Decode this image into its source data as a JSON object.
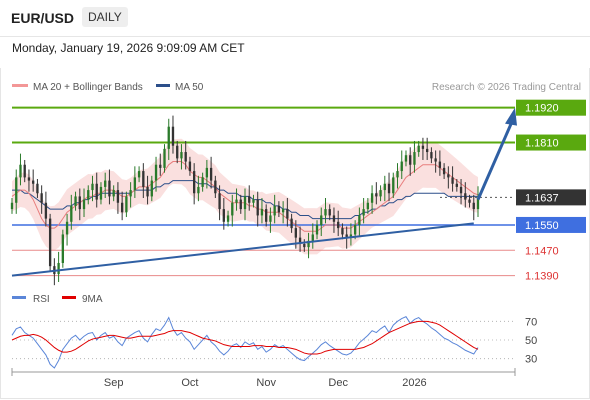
{
  "header": {
    "symbol": "EUR/USD",
    "timeframe": "DAILY"
  },
  "timestamp": "Monday, January 19, 2026 9:09:09 AM CET",
  "credit": "Research © 2026 Trading Central",
  "colors": {
    "green": "#5aa90f",
    "blue": "#3f6fe0",
    "red": "#e05555",
    "dark": "#333333",
    "arrow": "#2f5fa3",
    "band": "#f8d6d4",
    "ma20": "#e87d7d",
    "ma50": "#2c4f8a",
    "candle_up": "#2a7a2a",
    "candle_dn": "#333333"
  },
  "chart_data": [
    {
      "type": "line",
      "title": "EUR/USD",
      "legend": [
        {
          "name": "MA 20 + Bollinger Bands",
          "color": "#f39797"
        },
        {
          "name": "MA 50",
          "color": "#2c4f8a"
        }
      ],
      "x_ticks": [
        "Sep",
        "Oct",
        "Nov",
        "Dec",
        "2026"
      ],
      "ylim": [
        1.137,
        1.196
      ],
      "levels": [
        {
          "label": "1.1920",
          "value": 1.192,
          "style": "green-solid"
        },
        {
          "label": "1.1810",
          "value": 1.181,
          "style": "green-solid"
        },
        {
          "label": "1.1637",
          "value": 1.1637,
          "style": "dark-dotted"
        },
        {
          "label": "1.1550",
          "value": 1.155,
          "style": "blue-solid"
        },
        {
          "label": "1.1470",
          "value": 1.147,
          "style": "red-thin"
        },
        {
          "label": "1.1390",
          "value": 1.139,
          "style": "red-thin"
        }
      ],
      "trendline": {
        "from": [
          0,
          1.139
        ],
        "to": [
          109,
          1.1555
        ]
      },
      "forecast_arrow": {
        "from": [
          110,
          1.163
        ],
        "to": [
          118,
          1.192
        ]
      },
      "close": [
        1.162,
        1.17,
        1.174,
        1.17,
        1.169,
        1.168,
        1.165,
        1.162,
        1.157,
        1.142,
        1.1395,
        1.143,
        1.152,
        1.156,
        1.161,
        1.164,
        1.16,
        1.163,
        1.166,
        1.168,
        1.163,
        1.167,
        1.169,
        1.164,
        1.166,
        1.162,
        1.159,
        1.164,
        1.166,
        1.17,
        1.172,
        1.167,
        1.164,
        1.169,
        1.174,
        1.173,
        1.179,
        1.186,
        1.18,
        1.176,
        1.178,
        1.175,
        1.172,
        1.165,
        1.167,
        1.17,
        1.173,
        1.169,
        1.165,
        1.16,
        1.156,
        1.158,
        1.162,
        1.163,
        1.16,
        1.164,
        1.162,
        1.163,
        1.158,
        1.16,
        1.156,
        1.158,
        1.161,
        1.159,
        1.16,
        1.157,
        1.154,
        1.151,
        1.149,
        1.148,
        1.15,
        1.152,
        1.155,
        1.158,
        1.16,
        1.158,
        1.156,
        1.154,
        1.152,
        1.151,
        1.152,
        1.155,
        1.158,
        1.16,
        1.162,
        1.165,
        1.164,
        1.166,
        1.168,
        1.165,
        1.17,
        1.172,
        1.175,
        1.177,
        1.174,
        1.178,
        1.18,
        1.179,
        1.178,
        1.176,
        1.175,
        1.173,
        1.171,
        1.17,
        1.168,
        1.167,
        1.165,
        1.163,
        1.162,
        1.16,
        1.1637
      ],
      "ma20": [
        1.164,
        1.165,
        1.166,
        1.166,
        1.165,
        1.163,
        1.16,
        1.157,
        1.155,
        1.154,
        1.154,
        1.155,
        1.157,
        1.159,
        1.16,
        1.161,
        1.162,
        1.163,
        1.164,
        1.164,
        1.165,
        1.165,
        1.166,
        1.166,
        1.166,
        1.165,
        1.164,
        1.164,
        1.165,
        1.166,
        1.167,
        1.167,
        1.167,
        1.168,
        1.169,
        1.17,
        1.172,
        1.174,
        1.175,
        1.175,
        1.175,
        1.174,
        1.172,
        1.171,
        1.17,
        1.17,
        1.169,
        1.168,
        1.167,
        1.165,
        1.164,
        1.163,
        1.162,
        1.162,
        1.162,
        1.162,
        1.161,
        1.161,
        1.16,
        1.16,
        1.159,
        1.159,
        1.159,
        1.159,
        1.158,
        1.157,
        1.156,
        1.155,
        1.154,
        1.153,
        1.153,
        1.153,
        1.153,
        1.154,
        1.155,
        1.155,
        1.155,
        1.155,
        1.154,
        1.154,
        1.154,
        1.155,
        1.156,
        1.157,
        1.158,
        1.159,
        1.16,
        1.161,
        1.162,
        1.163,
        1.164,
        1.166,
        1.168,
        1.17,
        1.171,
        1.172,
        1.173,
        1.174,
        1.174,
        1.174,
        1.174,
        1.173,
        1.172,
        1.171,
        1.17,
        1.169,
        1.168,
        1.167,
        1.166,
        1.165,
        1.1645
      ],
      "ma50": [
        1.166,
        1.166,
        1.166,
        1.165,
        1.165,
        1.164,
        1.163,
        1.162,
        1.161,
        1.16,
        1.16,
        1.16,
        1.16,
        1.161,
        1.161,
        1.162,
        1.162,
        1.163,
        1.163,
        1.164,
        1.164,
        1.165,
        1.165,
        1.165,
        1.165,
        1.165,
        1.165,
        1.165,
        1.165,
        1.166,
        1.166,
        1.166,
        1.166,
        1.166,
        1.167,
        1.167,
        1.168,
        1.168,
        1.169,
        1.169,
        1.169,
        1.169,
        1.169,
        1.169,
        1.168,
        1.168,
        1.168,
        1.167,
        1.167,
        1.166,
        1.166,
        1.165,
        1.165,
        1.165,
        1.164,
        1.164,
        1.164,
        1.163,
        1.163,
        1.163,
        1.162,
        1.162,
        1.161,
        1.161,
        1.16,
        1.16,
        1.159,
        1.159,
        1.158,
        1.158,
        1.158,
        1.157,
        1.157,
        1.157,
        1.157,
        1.157,
        1.157,
        1.157,
        1.157,
        1.157,
        1.157,
        1.158,
        1.158,
        1.159,
        1.159,
        1.16,
        1.16,
        1.161,
        1.161,
        1.162,
        1.162,
        1.163,
        1.163,
        1.164,
        1.164,
        1.165,
        1.165,
        1.165,
        1.165,
        1.165,
        1.165,
        1.165,
        1.165,
        1.164,
        1.164,
        1.164,
        1.164,
        1.164,
        1.164,
        1.164,
        1.164
      ]
    },
    {
      "type": "line",
      "title": "RSI",
      "legend": [
        {
          "name": "RSI",
          "color": "#5b86d8"
        },
        {
          "name": "9MA",
          "color": "#e00000"
        }
      ],
      "y_ticks": [
        70,
        50,
        30
      ],
      "ylim": [
        20,
        80
      ],
      "rsi": [
        55,
        62,
        64,
        58,
        55,
        52,
        46,
        40,
        34,
        24,
        20,
        28,
        40,
        46,
        52,
        55,
        50,
        54,
        57,
        58,
        50,
        55,
        58,
        52,
        54,
        48,
        44,
        52,
        55,
        58,
        60,
        52,
        48,
        56,
        62,
        60,
        66,
        74,
        62,
        55,
        58,
        52,
        48,
        40,
        45,
        50,
        55,
        48,
        44,
        38,
        34,
        38,
        44,
        46,
        42,
        48,
        45,
        47,
        40,
        43,
        37,
        40,
        45,
        42,
        44,
        40,
        36,
        32,
        29,
        28,
        32,
        36,
        40,
        45,
        48,
        44,
        41,
        38,
        35,
        34,
        36,
        41,
        47,
        51,
        55,
        60,
        58,
        62,
        65,
        58,
        66,
        70,
        73,
        75,
        68,
        72,
        74,
        70,
        67,
        63,
        60,
        56,
        52,
        50,
        47,
        45,
        42,
        39,
        37,
        35,
        42
      ],
      "ma9": [
        50,
        52,
        54,
        55,
        55,
        56,
        55,
        53,
        50,
        46,
        42,
        39,
        37,
        37,
        38,
        40,
        43,
        46,
        49,
        51,
        52,
        53,
        54,
        55,
        55,
        54,
        53,
        52,
        52,
        53,
        54,
        54,
        54,
        54,
        55,
        56,
        57,
        59,
        60,
        60,
        60,
        59,
        58,
        56,
        54,
        52,
        51,
        50,
        49,
        47,
        45,
        44,
        43,
        43,
        43,
        43,
        43,
        44,
        44,
        44,
        43,
        43,
        43,
        42,
        42,
        42,
        41,
        40,
        38,
        36,
        35,
        35,
        35,
        36,
        38,
        39,
        40,
        40,
        40,
        40,
        40,
        40,
        41,
        42,
        44,
        46,
        49,
        52,
        55,
        58,
        60,
        62,
        64,
        66,
        68,
        69,
        70,
        70,
        70,
        69,
        68,
        66,
        63,
        60,
        57,
        54,
        51,
        48,
        45,
        42,
        40
      ]
    }
  ]
}
